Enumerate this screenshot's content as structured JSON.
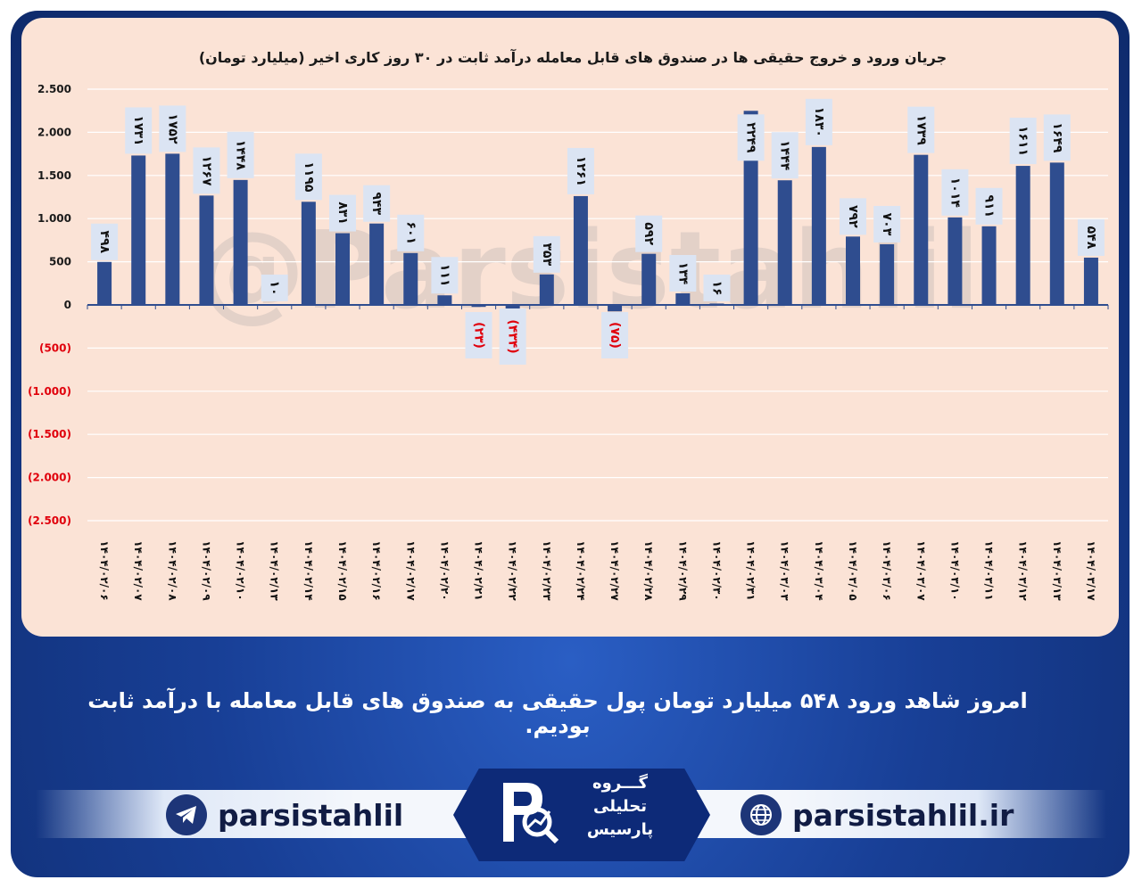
{
  "watermark": "@Parsistahlil",
  "caption": "امروز شاهد ورود ۵۴۸ میلیارد تومان پول حقیقی به صندوق های قابل معامله با درآمد ثابت بودیم.",
  "footer": {
    "telegram_handle": "parsistahlil",
    "website": "parsistahlil.ir",
    "logo_line1": "گـــروه",
    "logo_line2": "تحلیلی",
    "logo_line3": "پارسیس"
  },
  "colors": {
    "bar": "#2f4d8f",
    "label_box": "#dbe4f3",
    "negative_label": "#e0000c",
    "panel": "#fbe3d6"
  },
  "chart_data": {
    "type": "bar",
    "title": "جریان ورود و خروج حقیقی ها در صندوق های قابل معامله درآمد ثابت در ۳۰ روز کاری اخیر (میلیارد تومان)",
    "ylim": [
      -2500,
      2500
    ],
    "yticks": [
      2500,
      2000,
      1500,
      1000,
      500,
      0,
      -500,
      -1000,
      -1500,
      -2000,
      -2500
    ],
    "ytick_labels": [
      "2.500",
      "2.000",
      "1.500",
      "1.000",
      "500",
      "0",
      "(500)",
      "(1.000)",
      "(1.500)",
      "(2.000)",
      "(2.500)"
    ],
    "grid": true,
    "categories": [
      "۱۴۰۴/۰۲/۰۶",
      "۱۴۰۴/۰۲/۰۷",
      "۱۴۰۴/۰۲/۰۸",
      "۱۴۰۴/۰۲/۰۹",
      "۱۴۰۴/۰۲/۱۰",
      "۱۴۰۴/۰۲/۱۳",
      "۱۴۰۴/۰۲/۱۴",
      "۱۴۰۴/۰۲/۱۵",
      "۱۴۰۴/۰۲/۱۶",
      "۱۴۰۴/۰۲/۱۷",
      "۱۴۰۴/۰۲/۲۰",
      "۱۴۰۴/۰۲/۲۱",
      "۱۴۰۴/۰۲/۲۲",
      "۱۴۰۴/۰۲/۲۳",
      "۱۴۰۴/۰۲/۲۴",
      "۱۴۰۴/۰۲/۲۷",
      "۱۴۰۴/۰۲/۲۸",
      "۱۴۰۴/۰۲/۲۹",
      "۱۴۰۴/۰۲/۳۰",
      "۱۴۰۴/۰۲/۳۱",
      "۱۴۰۴/۰۳/۰۳",
      "۱۴۰۴/۰۳/۰۴",
      "۱۴۰۴/۰۳/۰۵",
      "۱۴۰۴/۰۳/۰۶",
      "۱۴۰۴/۰۳/۰۷",
      "۱۴۰۴/۰۳/۱۰",
      "۱۴۰۴/۰۳/۱۱",
      "۱۴۰۴/۰۳/۱۲",
      "۱۴۰۴/۰۳/۱۳",
      "۱۴۰۴/۰۳/۱۷"
    ],
    "values": [
      498,
      1731,
      1752,
      1267,
      1448,
      10,
      1195,
      831,
      943,
      601,
      111,
      -23,
      -434,
      353,
      1261,
      -75,
      592,
      134,
      16,
      2249,
      1444,
      1830,
      792,
      703,
      1739,
      1014,
      911,
      1611,
      1649,
      548
    ],
    "value_labels": [
      "۴۹۸",
      "۱۷۳۱",
      "۱۷۵۲",
      "۱۲۶۷",
      "۱۴۴۸",
      "۱۰",
      "۱۱۹۵",
      "۸۳۱",
      "۹۴۳",
      "۶۰۱",
      "۱۱۱",
      "(۲۳)",
      "(۴۳۴)",
      "۳۵۳",
      "۱۲۶۱",
      "(۷۵)",
      "۵۹۲",
      "۱۳۴",
      "۱۶",
      "۲۲۴۹",
      "۱۴۴۴",
      "۱۸۳۰",
      "۷۹۲",
      "۷۰۳",
      "۱۷۳۹",
      "۱۰۱۴",
      "۹۱۱",
      "۱۶۱۱",
      "۱۶۴۹",
      "۵۴۸"
    ]
  }
}
